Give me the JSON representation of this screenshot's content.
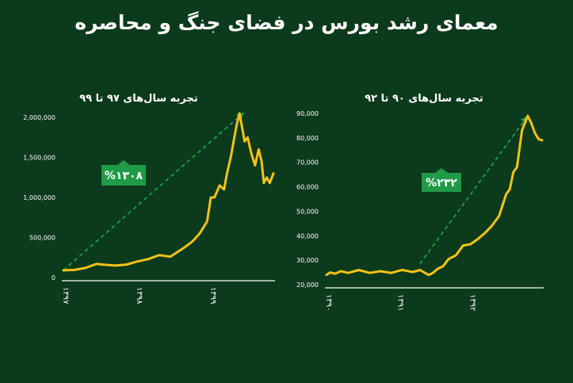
{
  "title": "معمای رشد بورس در فضای جنگ و محاصره",
  "colors": {
    "background": "#0c3a1c",
    "series": "#f2c318",
    "trend": "#21a64d",
    "badge": "#1f9a48",
    "text": "#ffffff"
  },
  "chart_data": [
    {
      "type": "line",
      "title": "تجربه سال‌های ۹۷ تا ۹۹",
      "badge": "%۱۳۰۸",
      "y_tick_labels": [
        "2,000,000",
        "1,500,000",
        "1,000,000",
        "500,000",
        "0"
      ],
      "y_ticks": [
        2000000,
        1500000,
        1000000,
        500000,
        0
      ],
      "ylim": [
        0,
        2000000
      ],
      "x_tick_labels": [
        "۱۳۹۷",
        "۱۳۹۸",
        "۱۳۹۹"
      ],
      "x_ticks": [
        1397,
        1398,
        1399
      ],
      "xlim": [
        1397,
        1399.85
      ],
      "trend": {
        "from": [
          1397,
          90000
        ],
        "to": [
          1399.45,
          2060000
        ]
      },
      "series": [
        {
          "x": [
            1397,
            1397.15,
            1397.3,
            1397.45,
            1397.55,
            1397.7,
            1397.85,
            1398.0,
            1398.15,
            1398.3,
            1398.45,
            1398.55,
            1398.65,
            1398.75,
            1398.85,
            1398.95,
            1399.0,
            1399.05,
            1399.12,
            1399.18,
            1399.22,
            1399.27,
            1399.31,
            1399.35,
            1399.39,
            1399.43,
            1399.46,
            1399.5,
            1399.55,
            1399.6,
            1399.65,
            1399.69,
            1399.72,
            1399.76,
            1399.8,
            1399.85
          ],
          "y": [
            90000,
            95000,
            120000,
            170000,
            160000,
            150000,
            160000,
            200000,
            230000,
            280000,
            260000,
            320000,
            380000,
            450000,
            550000,
            700000,
            1000000,
            1000000,
            1150000,
            1100000,
            1300000,
            1500000,
            1700000,
            1900000,
            2050000,
            1850000,
            1700000,
            1750000,
            1550000,
            1400000,
            1600000,
            1450000,
            1180000,
            1250000,
            1180000,
            1300000
          ]
        }
      ]
    },
    {
      "type": "line",
      "title": "تجربه سال‌های ۹۰ تا ۹۲",
      "badge": "%۲۳۲",
      "y_tick_labels": [
        "90,000",
        "80,000",
        "70,000",
        "60,000",
        "50,000",
        "40,000",
        "30,000",
        "20,000"
      ],
      "y_ticks": [
        90000,
        80000,
        70000,
        60000,
        50000,
        40000,
        30000,
        20000
      ],
      "ylim": [
        20000,
        90000
      ],
      "x_tick_labels": [
        "۱۳۹۰",
        "۱۳۹۱",
        "۱۳۹۲"
      ],
      "x_ticks": [
        1390,
        1391,
        1392
      ],
      "xlim": [
        1390,
        1393
      ],
      "trend": {
        "from": [
          1391.3,
          28500
        ],
        "to": [
          1392.8,
          89000
        ]
      },
      "series": [
        {
          "x": [
            1390,
            1390.05,
            1390.12,
            1390.2,
            1390.3,
            1390.45,
            1390.6,
            1390.75,
            1390.9,
            1391.05,
            1391.2,
            1391.3,
            1391.42,
            1391.48,
            1391.55,
            1391.62,
            1391.7,
            1391.8,
            1391.9,
            1392.0,
            1392.1,
            1392.2,
            1392.3,
            1392.4,
            1392.5,
            1392.55,
            1392.6,
            1392.65,
            1392.72,
            1392.8,
            1392.85,
            1392.9,
            1392.95,
            1393.0
          ],
          "y": [
            24000,
            25000,
            24500,
            25500,
            24800,
            26000,
            24800,
            25500,
            24800,
            26000,
            25200,
            26000,
            24000,
            24800,
            26500,
            27500,
            30500,
            32000,
            36000,
            36500,
            38500,
            41000,
            44000,
            48000,
            57000,
            59000,
            66000,
            68000,
            83000,
            89000,
            86000,
            82000,
            79500,
            79000
          ]
        }
      ]
    }
  ]
}
